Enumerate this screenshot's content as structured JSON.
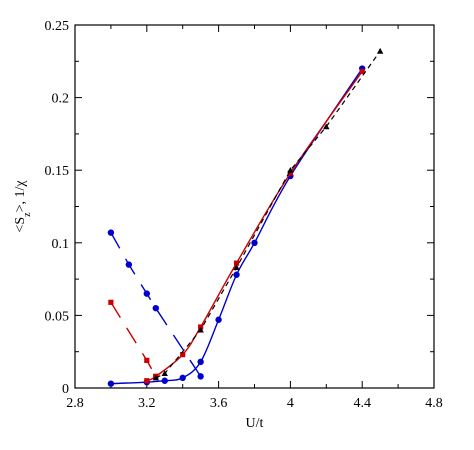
{
  "chart_data": {
    "type": "line",
    "xlabel": "U/t",
    "ylabel": "<S_z>, 1/χ",
    "xlim": [
      2.8,
      4.8
    ],
    "ylim": [
      0,
      0.25
    ],
    "xticks": [
      "2.8",
      "3.2",
      "3.6",
      "4",
      "4.4",
      "4.8"
    ],
    "yticks": [
      "0",
      "0.05",
      "0.1",
      "0.15",
      "0.2",
      "0.25"
    ],
    "grid": false,
    "legend": "none",
    "series": [
      {
        "color": "#0000cc",
        "marker": "circle",
        "line": "solid",
        "x": [
          3.0,
          3.2,
          3.3,
          3.4,
          3.5,
          3.6,
          3.7,
          3.8,
          4.0,
          4.4
        ],
        "y": [
          0.003,
          0.004,
          0.005,
          0.007,
          0.018,
          0.047,
          0.078,
          0.1,
          0.146,
          0.22
        ]
      },
      {
        "color": "#0000cc",
        "marker": "circle",
        "line": "long-dash",
        "x": [
          3.0,
          3.1,
          3.2,
          3.25,
          3.5
        ],
        "y": [
          0.107,
          0.085,
          0.065,
          0.055,
          0.008
        ]
      },
      {
        "color": "#cc0000",
        "marker": "square",
        "line": "solid",
        "x": [
          3.2,
          3.25,
          3.4,
          3.5,
          3.7,
          4.0,
          4.4
        ],
        "y": [
          0.005,
          0.008,
          0.023,
          0.042,
          0.086,
          0.148,
          0.218
        ]
      },
      {
        "color": "#cc0000",
        "marker": "square",
        "line": "long-dash",
        "x": [
          3.0,
          3.2,
          3.25
        ],
        "y": [
          0.059,
          0.019,
          0.008
        ]
      },
      {
        "color": "#000000",
        "marker": "triangle",
        "line": "short-dash",
        "x": [
          3.25,
          3.3,
          3.5,
          3.7,
          4.0,
          4.2,
          4.5
        ],
        "y": [
          0.007,
          0.01,
          0.04,
          0.083,
          0.15,
          0.18,
          0.232
        ]
      }
    ]
  }
}
